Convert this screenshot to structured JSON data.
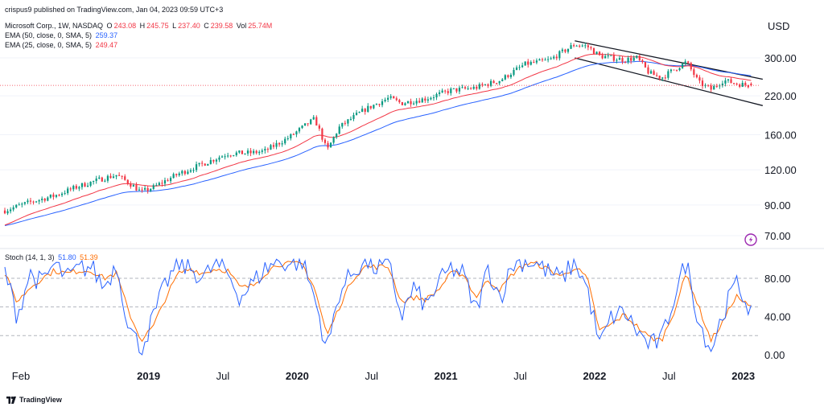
{
  "header": {
    "published": "crispus9 published on TradingView.com, Jan 04, 2023 09:59 UTC+3",
    "symbol": "Microsoft Corp., 1W, NASDAQ",
    "o_label": "O",
    "o_val": "243.08",
    "h_label": "H",
    "h_val": "245.75",
    "l_label": "L",
    "l_val": "237.40",
    "c_label": "C",
    "c_val": "239.58",
    "vol_label": "Vol",
    "vol_val": "25.74M"
  },
  "indicators": {
    "ema50": {
      "label": "EMA (50, close, 0, SMA, 5)",
      "value": "259.37",
      "color": "#2962ff"
    },
    "ema25": {
      "label": "EMA (25, close, 0, SMA, 5)",
      "value": "249.47",
      "color": "#f23645"
    },
    "stoch": {
      "label": "Stoch (14, 1, 3)",
      "k_value": "51.80",
      "d_value": "51.39",
      "k_color": "#2962ff",
      "d_color": "#ff6d00"
    }
  },
  "footer": {
    "brand": "TradingView"
  },
  "currency": "USD",
  "colors": {
    "up": "#089981",
    "down": "#f23645",
    "channel": "#131722",
    "price_line": "#f23645"
  },
  "chart_data": [
    {
      "type": "candlestick",
      "title": "Microsoft Corp., 1W, NASDAQ",
      "scale": "log",
      "ylabel": "USD",
      "yticks": [
        70,
        90,
        120,
        160,
        220,
        300
      ],
      "ytick_labels": [
        "70.00",
        "90.00",
        "120.00",
        "160.00",
        "220.00",
        "300.00"
      ],
      "xticks": [
        "Feb",
        "2019",
        "Jul",
        "2020",
        "Jul",
        "2021",
        "Jul",
        "2022",
        "Jul",
        "2023"
      ],
      "x_range": [
        "2018-01",
        "2023-01"
      ],
      "current_price": 239.58,
      "price_path": [
        [
          "2018-01",
          86
        ],
        [
          "2018-03",
          92
        ],
        [
          "2018-05",
          97
        ],
        [
          "2018-07",
          105
        ],
        [
          "2018-09",
          112
        ],
        [
          "2018-10",
          115
        ],
        [
          "2018-11",
          108
        ],
        [
          "2018-12",
          100
        ],
        [
          "2019-01",
          104
        ],
        [
          "2019-03",
          116
        ],
        [
          "2019-05",
          126
        ],
        [
          "2019-07",
          137
        ],
        [
          "2019-09",
          138
        ],
        [
          "2019-10",
          140
        ],
        [
          "2019-12",
          157
        ],
        [
          "2020-02",
          182
        ],
        [
          "2020-03",
          140
        ],
        [
          "2020-04",
          170
        ],
        [
          "2020-06",
          196
        ],
        [
          "2020-08",
          216
        ],
        [
          "2020-09",
          207
        ],
        [
          "2020-11",
          215
        ],
        [
          "2021-01",
          230
        ],
        [
          "2021-03",
          235
        ],
        [
          "2021-05",
          250
        ],
        [
          "2021-07",
          285
        ],
        [
          "2021-09",
          295
        ],
        [
          "2021-11",
          335
        ],
        [
          "2021-12",
          330
        ],
        [
          "2022-01",
          305
        ],
        [
          "2022-03",
          295
        ],
        [
          "2022-04",
          300
        ],
        [
          "2022-05",
          265
        ],
        [
          "2022-06",
          255
        ],
        [
          "2022-08",
          290
        ],
        [
          "2022-09",
          245
        ],
        [
          "2022-10",
          232
        ],
        [
          "2022-11",
          250
        ],
        [
          "2022-12",
          243
        ],
        [
          "2023-01",
          240
        ]
      ],
      "series": [
        {
          "name": "EMA (50, close, 0, SMA, 5)",
          "last": 259.37
        },
        {
          "name": "EMA (25, close, 0, SMA, 5)",
          "last": 249.47
        }
      ],
      "channel": {
        "upper": [
          [
            "2021-11",
            345
          ],
          [
            "2023-01",
            252
          ]
        ],
        "lower": [
          [
            "2021-11",
            300
          ],
          [
            "2023-01",
            203
          ]
        ]
      }
    },
    {
      "type": "line",
      "title": "Stoch (14, 1, 3)",
      "yticks": [
        0,
        40,
        80
      ],
      "ytick_labels": [
        "0.00",
        "40.00",
        "80.00"
      ],
      "bands": [
        20,
        50,
        80
      ],
      "ylim": [
        -5,
        108
      ],
      "series": [
        {
          "name": "%K",
          "last": 51.8
        },
        {
          "name": "%D",
          "last": 51.39
        }
      ],
      "k_path": [
        [
          "2018-01",
          88
        ],
        [
          "2018-02",
          40
        ],
        [
          "2018-03",
          85
        ],
        [
          "2018-04",
          75
        ],
        [
          "2018-05",
          95
        ],
        [
          "2018-06",
          80
        ],
        [
          "2018-07",
          90
        ],
        [
          "2018-08",
          92
        ],
        [
          "2018-09",
          70
        ],
        [
          "2018-10",
          95
        ],
        [
          "2018-11",
          30
        ],
        [
          "2018-12",
          5
        ],
        [
          "2019-01",
          40
        ],
        [
          "2019-02",
          75
        ],
        [
          "2019-03",
          95
        ],
        [
          "2019-04",
          90
        ],
        [
          "2019-05",
          80
        ],
        [
          "2019-06",
          95
        ],
        [
          "2019-07",
          85
        ],
        [
          "2019-08",
          60
        ],
        [
          "2019-09",
          75
        ],
        [
          "2019-10",
          90
        ],
        [
          "2019-11",
          98
        ],
        [
          "2019-12",
          95
        ],
        [
          "2020-01",
          98
        ],
        [
          "2020-02",
          60
        ],
        [
          "2020-03",
          5
        ],
        [
          "2020-04",
          65
        ],
        [
          "2020-05",
          85
        ],
        [
          "2020-06",
          98
        ],
        [
          "2020-07",
          90
        ],
        [
          "2020-08",
          95
        ],
        [
          "2020-09",
          40
        ],
        [
          "2020-10",
          70
        ],
        [
          "2020-11",
          50
        ],
        [
          "2020-12",
          75
        ],
        [
          "2021-01",
          90
        ],
        [
          "2021-02",
          85
        ],
        [
          "2021-03",
          45
        ],
        [
          "2021-04",
          90
        ],
        [
          "2021-05",
          60
        ],
        [
          "2021-06",
          95
        ],
        [
          "2021-07",
          98
        ],
        [
          "2021-08",
          95
        ],
        [
          "2021-09",
          85
        ],
        [
          "2021-10",
          80
        ],
        [
          "2021-11",
          98
        ],
        [
          "2021-12",
          70
        ],
        [
          "2022-01",
          10
        ],
        [
          "2022-02",
          40
        ],
        [
          "2022-03",
          45
        ],
        [
          "2022-04",
          25
        ],
        [
          "2022-05",
          10
        ],
        [
          "2022-06",
          15
        ],
        [
          "2022-07",
          60
        ],
        [
          "2022-08",
          98
        ],
        [
          "2022-09",
          35
        ],
        [
          "2022-10",
          5
        ],
        [
          "2022-11",
          45
        ],
        [
          "2022-12",
          75
        ],
        [
          "2023-01",
          52
        ]
      ],
      "d_path": [
        [
          "2018-01",
          85
        ],
        [
          "2018-02",
          55
        ],
        [
          "2018-03",
          70
        ],
        [
          "2018-04",
          80
        ],
        [
          "2018-05",
          88
        ],
        [
          "2018-06",
          85
        ],
        [
          "2018-07",
          88
        ],
        [
          "2018-08",
          88
        ],
        [
          "2018-09",
          80
        ],
        [
          "2018-10",
          85
        ],
        [
          "2018-11",
          45
        ],
        [
          "2018-12",
          15
        ],
        [
          "2019-01",
          30
        ],
        [
          "2019-02",
          60
        ],
        [
          "2019-03",
          85
        ],
        [
          "2019-04",
          90
        ],
        [
          "2019-05",
          85
        ],
        [
          "2019-06",
          90
        ],
        [
          "2019-07",
          88
        ],
        [
          "2019-08",
          70
        ],
        [
          "2019-09",
          72
        ],
        [
          "2019-10",
          85
        ],
        [
          "2019-11",
          95
        ],
        [
          "2019-12",
          95
        ],
        [
          "2020-01",
          95
        ],
        [
          "2020-02",
          70
        ],
        [
          "2020-03",
          20
        ],
        [
          "2020-04",
          50
        ],
        [
          "2020-05",
          78
        ],
        [
          "2020-06",
          92
        ],
        [
          "2020-07",
          92
        ],
        [
          "2020-08",
          92
        ],
        [
          "2020-09",
          55
        ],
        [
          "2020-10",
          60
        ],
        [
          "2020-11",
          58
        ],
        [
          "2020-12",
          68
        ],
        [
          "2021-01",
          85
        ],
        [
          "2021-02",
          85
        ],
        [
          "2021-03",
          60
        ],
        [
          "2021-04",
          78
        ],
        [
          "2021-05",
          68
        ],
        [
          "2021-06",
          85
        ],
        [
          "2021-07",
          95
        ],
        [
          "2021-08",
          95
        ],
        [
          "2021-09",
          88
        ],
        [
          "2021-10",
          82
        ],
        [
          "2021-11",
          92
        ],
        [
          "2021-12",
          80
        ],
        [
          "2022-01",
          25
        ],
        [
          "2022-02",
          32
        ],
        [
          "2022-03",
          42
        ],
        [
          "2022-04",
          30
        ],
        [
          "2022-05",
          18
        ],
        [
          "2022-06",
          15
        ],
        [
          "2022-07",
          45
        ],
        [
          "2022-08",
          85
        ],
        [
          "2022-09",
          50
        ],
        [
          "2022-10",
          15
        ],
        [
          "2022-11",
          35
        ],
        [
          "2022-12",
          62
        ],
        [
          "2023-01",
          51
        ]
      ]
    }
  ]
}
